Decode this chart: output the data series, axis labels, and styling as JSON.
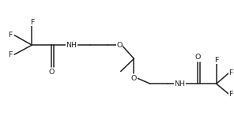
{
  "background": "#ffffff",
  "line_color": "#222222",
  "text_color": "#222222",
  "font_size": 6.8,
  "lw": 1.1,
  "xlim": [
    0,
    10
  ],
  "ylim": [
    0,
    5.2
  ]
}
